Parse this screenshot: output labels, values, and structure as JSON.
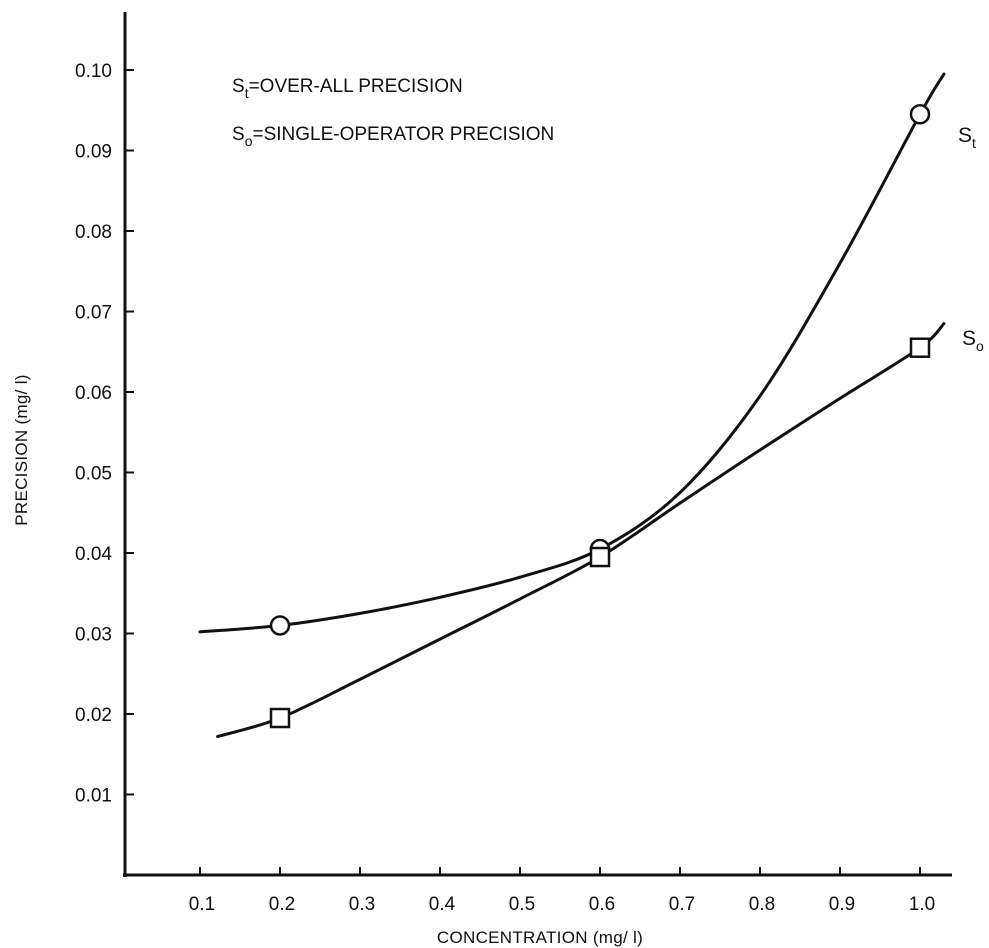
{
  "chart_data": {
    "type": "line",
    "xlabel": "CONCENTRATION (mg/ l)",
    "ylabel": "PRECISION (mg/ l)",
    "xlim": [
      0,
      1.03
    ],
    "ylim": [
      0,
      0.11
    ],
    "x_ticks": [
      "0.1",
      "0.2",
      "0.3",
      "0.4",
      "0.5",
      "0.6",
      "0.7",
      "0.8",
      "0.9",
      "1.0"
    ],
    "y_ticks": [
      "0.01",
      "0.02",
      "0.03",
      "0.04",
      "0.05",
      "0.06",
      "0.07",
      "0.08",
      "0.09",
      "0.10"
    ],
    "legend": [
      {
        "symbol": "S",
        "subscript": "t",
        "text": "=OVER-ALL PRECISION"
      },
      {
        "symbol": "S",
        "subscript": "o",
        "text": "=SINGLE-OPERATOR PRECISION"
      }
    ],
    "series": [
      {
        "name": "St",
        "label_main": "S",
        "label_sub": "t",
        "marker": "circle",
        "points": [
          {
            "x": 0.2,
            "y": 0.031
          },
          {
            "x": 0.6,
            "y": 0.0405
          },
          {
            "x": 1.0,
            "y": 0.0945
          }
        ],
        "curve": [
          [
            0.1,
            0.0302
          ],
          [
            0.2,
            0.031
          ],
          [
            0.3,
            0.0325
          ],
          [
            0.4,
            0.0345
          ],
          [
            0.5,
            0.037
          ],
          [
            0.6,
            0.0405
          ],
          [
            0.7,
            0.0475
          ],
          [
            0.8,
            0.0595
          ],
          [
            0.9,
            0.076
          ],
          [
            1.0,
            0.0945
          ],
          [
            1.03,
            0.0995
          ]
        ]
      },
      {
        "name": "So",
        "label_main": "S",
        "label_sub": "o",
        "marker": "square",
        "points": [
          {
            "x": 0.2,
            "y": 0.0195
          },
          {
            "x": 0.6,
            "y": 0.0395
          },
          {
            "x": 1.0,
            "y": 0.0655
          }
        ],
        "curve": [
          [
            0.122,
            0.0172
          ],
          [
            0.2,
            0.0195
          ],
          [
            0.3,
            0.0243
          ],
          [
            0.4,
            0.0293
          ],
          [
            0.5,
            0.0343
          ],
          [
            0.6,
            0.0395
          ],
          [
            0.7,
            0.0462
          ],
          [
            0.8,
            0.0528
          ],
          [
            0.9,
            0.0592
          ],
          [
            1.0,
            0.0655
          ],
          [
            1.03,
            0.0685
          ]
        ]
      }
    ]
  }
}
